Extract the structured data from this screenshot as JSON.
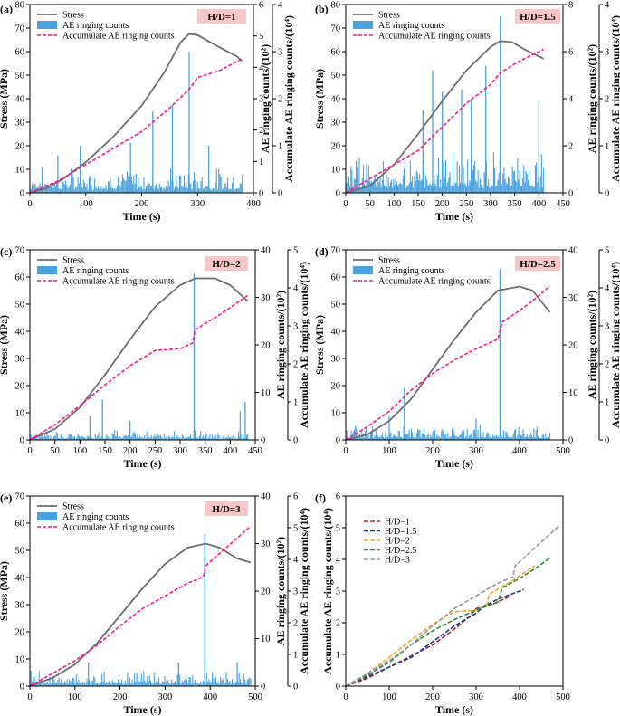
{
  "figure": {
    "colors": {
      "stress": "#6e6e6e",
      "ae_bars": "#4aa3df",
      "accumulate": "#ff1493",
      "label_box": "#f7c6c6"
    },
    "legend": {
      "stress": "Stress",
      "ae": "AE ringing counts",
      "acc": "Accumulate AE ringing counts"
    }
  },
  "chart_data": [
    {
      "type": "line",
      "panel": "(a)",
      "ratio_label": "H/D=1",
      "xlabel": "Time (s)",
      "ylabel_left": "Stress (MPa)",
      "ylabel_right1": "AE ringing counts/(10²)",
      "ylabel_right2": "Accumulate AE ringing counts/(10⁴)",
      "xlim": [
        0,
        400
      ],
      "xticks": [
        0,
        100,
        200,
        300,
        400
      ],
      "stress_lim": [
        0,
        80
      ],
      "stress_ticks": [
        0,
        10,
        20,
        30,
        40,
        50,
        60,
        70,
        80
      ],
      "ae_lim": [
        0,
        6
      ],
      "ae_ticks": [
        0,
        1,
        2,
        3,
        4,
        5,
        6
      ],
      "acc_lim": [
        0,
        4
      ],
      "acc_ticks": [
        0,
        1,
        2,
        3,
        4
      ],
      "duration": 380,
      "stress": [
        [
          0,
          0
        ],
        [
          30,
          2
        ],
        [
          60,
          6
        ],
        [
          100,
          13
        ],
        [
          150,
          24
        ],
        [
          200,
          37
        ],
        [
          240,
          51
        ],
        [
          270,
          64
        ],
        [
          285,
          67.5
        ],
        [
          300,
          67
        ],
        [
          330,
          63
        ],
        [
          370,
          58
        ],
        [
          380,
          56
        ]
      ],
      "accumulate": [
        [
          0,
          0
        ],
        [
          50,
          0.25
        ],
        [
          100,
          0.6
        ],
        [
          150,
          0.95
        ],
        [
          200,
          1.3
        ],
        [
          250,
          1.8
        ],
        [
          285,
          2.2
        ],
        [
          300,
          2.45
        ],
        [
          340,
          2.6
        ],
        [
          380,
          2.85
        ]
      ],
      "ae_base": 0.5,
      "ae_spikes": [
        [
          285,
          4.5
        ],
        [
          255,
          2.8
        ],
        [
          220,
          2.6
        ],
        [
          90,
          1.5
        ],
        [
          50,
          1.2
        ],
        [
          180,
          1.6
        ],
        [
          320,
          1.5
        ]
      ]
    },
    {
      "type": "line",
      "panel": "(b)",
      "ratio_label": "H/D=1.5",
      "xlabel": "Time (s)",
      "ylabel_left": "Stress (MPa)",
      "ylabel_right1": "AE ringing counts/(10²)",
      "ylabel_right2": "Accumulate AE ringing counts/(10⁴)",
      "xlim": [
        0,
        450
      ],
      "xticks": [
        0,
        50,
        100,
        150,
        200,
        250,
        300,
        350,
        400,
        450
      ],
      "stress_lim": [
        0,
        80
      ],
      "stress_ticks": [
        0,
        10,
        20,
        30,
        40,
        50,
        60,
        70,
        80
      ],
      "ae_lim": [
        0,
        8
      ],
      "ae_ticks": [
        0,
        2,
        4,
        6,
        8
      ],
      "acc_lim": [
        0,
        4
      ],
      "acc_ticks": [
        0,
        1,
        2,
        3,
        4
      ],
      "duration": 410,
      "stress": [
        [
          0,
          0
        ],
        [
          50,
          3
        ],
        [
          100,
          12
        ],
        [
          150,
          25
        ],
        [
          200,
          39
        ],
        [
          250,
          52
        ],
        [
          300,
          62
        ],
        [
          320,
          64.5
        ],
        [
          345,
          64
        ],
        [
          370,
          61
        ],
        [
          410,
          57
        ]
      ],
      "accumulate": [
        [
          0,
          0
        ],
        [
          50,
          0.3
        ],
        [
          100,
          0.6
        ],
        [
          150,
          0.9
        ],
        [
          200,
          1.4
        ],
        [
          250,
          1.9
        ],
        [
          300,
          2.3
        ],
        [
          320,
          2.55
        ],
        [
          360,
          2.8
        ],
        [
          410,
          3.05
        ]
      ],
      "ae_base": 1.0,
      "ae_spikes": [
        [
          320,
          7.5
        ],
        [
          180,
          5.2
        ],
        [
          290,
          5.4
        ],
        [
          240,
          4.4
        ],
        [
          200,
          4.3
        ],
        [
          400,
          3.9
        ],
        [
          260,
          4.0
        ],
        [
          160,
          3.5
        ]
      ]
    },
    {
      "type": "line",
      "panel": "(c)",
      "ratio_label": "H/D=2",
      "xlabel": "Time (s)",
      "ylabel_left": "Stress (MPa)",
      "ylabel_right1": "AE ringing counts/(10²)",
      "ylabel_right2": "Accumulate AE ringing counts/(10⁴)",
      "xlim": [
        0,
        450
      ],
      "xticks": [
        0,
        50,
        100,
        150,
        200,
        250,
        300,
        350,
        400,
        450
      ],
      "stress_lim": [
        0,
        70
      ],
      "stress_ticks": [
        0,
        10,
        20,
        30,
        40,
        50,
        60,
        70
      ],
      "ae_lim": [
        0,
        40
      ],
      "ae_ticks": [
        0,
        10,
        20,
        30,
        40
      ],
      "acc_lim": [
        0,
        5
      ],
      "acc_ticks": [
        0,
        1,
        2,
        3,
        4,
        5
      ],
      "duration": 435,
      "stress": [
        [
          0,
          0
        ],
        [
          50,
          4
        ],
        [
          100,
          12
        ],
        [
          150,
          24
        ],
        [
          200,
          37
        ],
        [
          250,
          49
        ],
        [
          300,
          57
        ],
        [
          330,
          59.5
        ],
        [
          370,
          59.5
        ],
        [
          400,
          57
        ],
        [
          430,
          52
        ],
        [
          435,
          51
        ]
      ],
      "accumulate": [
        [
          0,
          0
        ],
        [
          50,
          0.4
        ],
        [
          100,
          0.9
        ],
        [
          150,
          1.45
        ],
        [
          200,
          1.95
        ],
        [
          250,
          2.35
        ],
        [
          300,
          2.4
        ],
        [
          325,
          2.55
        ],
        [
          330,
          2.9
        ],
        [
          380,
          3.3
        ],
        [
          435,
          3.8
        ]
      ],
      "ae_base": 1.3,
      "ae_spikes": [
        [
          328,
          35
        ],
        [
          145,
          8.5
        ],
        [
          120,
          5
        ],
        [
          200,
          4
        ],
        [
          430,
          8
        ],
        [
          420,
          6
        ]
      ]
    },
    {
      "type": "line",
      "panel": "(d)",
      "ratio_label": "H/D=2.5",
      "xlabel": "Time (s)",
      "ylabel_left": "Stress (MPa)",
      "ylabel_right1": "AE ringing counts/(10²)",
      "ylabel_right2": "Accumulate AE ringing counts/(10⁴)",
      "xlim": [
        0,
        500
      ],
      "xticks": [
        0,
        100,
        200,
        300,
        400,
        500
      ],
      "stress_lim": [
        0,
        70
      ],
      "stress_ticks": [
        0,
        10,
        20,
        30,
        40,
        50,
        60,
        70
      ],
      "ae_lim": [
        0,
        40
      ],
      "ae_ticks": [
        0,
        10,
        20,
        30,
        40
      ],
      "acc_lim": [
        0,
        5
      ],
      "acc_ticks": [
        0,
        1,
        2,
        3,
        4,
        5
      ],
      "duration": 470,
      "stress": [
        [
          0,
          0
        ],
        [
          50,
          2
        ],
        [
          100,
          7
        ],
        [
          150,
          15
        ],
        [
          200,
          26
        ],
        [
          250,
          37
        ],
        [
          300,
          47
        ],
        [
          350,
          55
        ],
        [
          400,
          56.5
        ],
        [
          430,
          55
        ],
        [
          455,
          50
        ],
        [
          470,
          47
        ]
      ],
      "accumulate": [
        [
          0,
          0
        ],
        [
          50,
          0.35
        ],
        [
          100,
          0.75
        ],
        [
          150,
          1.3
        ],
        [
          200,
          1.75
        ],
        [
          250,
          2.1
        ],
        [
          300,
          2.4
        ],
        [
          350,
          2.65
        ],
        [
          360,
          3.1
        ],
        [
          400,
          3.4
        ],
        [
          440,
          3.75
        ],
        [
          470,
          4.05
        ]
      ],
      "ae_base": 1.8,
      "ae_spikes": [
        [
          355,
          36
        ],
        [
          135,
          11
        ],
        [
          100,
          5
        ],
        [
          300,
          4.5
        ]
      ]
    },
    {
      "type": "line",
      "panel": "(e)",
      "ratio_label": "H/D=3",
      "xlabel": "Time (s)",
      "ylabel_left": "Stress (MPa)",
      "ylabel_right1": "AE ringing counts/(10²)",
      "ylabel_right2": "Accumulate AE ringing counts/(10⁴)",
      "xlim": [
        0,
        500
      ],
      "xticks": [
        0,
        100,
        200,
        300,
        400,
        500
      ],
      "stress_lim": [
        0,
        70
      ],
      "stress_ticks": [
        0,
        10,
        20,
        30,
        40,
        50,
        60,
        70
      ],
      "ae_lim": [
        0,
        40
      ],
      "ae_ticks": [
        0,
        10,
        20,
        30,
        40
      ],
      "acc_lim": [
        0,
        6
      ],
      "acc_ticks": [
        0,
        1,
        2,
        3,
        4,
        5,
        6
      ],
      "duration": 490,
      "stress": [
        [
          0,
          0
        ],
        [
          50,
          3
        ],
        [
          100,
          8
        ],
        [
          150,
          16
        ],
        [
          200,
          26
        ],
        [
          250,
          36
        ],
        [
          300,
          45
        ],
        [
          350,
          51
        ],
        [
          390,
          52.5
        ],
        [
          420,
          51
        ],
        [
          460,
          47
        ],
        [
          490,
          45.5
        ]
      ],
      "accumulate": [
        [
          0,
          0
        ],
        [
          50,
          0.4
        ],
        [
          100,
          0.8
        ],
        [
          150,
          1.3
        ],
        [
          200,
          1.9
        ],
        [
          250,
          2.45
        ],
        [
          300,
          2.85
        ],
        [
          350,
          3.25
        ],
        [
          385,
          3.45
        ],
        [
          390,
          3.8
        ],
        [
          430,
          4.3
        ],
        [
          490,
          5.05
        ]
      ],
      "ae_base": 2.0,
      "ae_spikes": [
        [
          388,
          32
        ],
        [
          130,
          5
        ],
        [
          330,
          5
        ],
        [
          460,
          5
        ]
      ]
    },
    {
      "type": "line",
      "panel": "(f)",
      "xlabel": "Time (s)",
      "ylabel": "Accumulate AE ringing counts/(10⁴)",
      "xlim": [
        0,
        500
      ],
      "xticks": [
        0,
        100,
        200,
        300,
        400,
        500
      ],
      "ylim": [
        0,
        6
      ],
      "yticks": [
        0,
        1,
        2,
        3,
        4,
        5,
        6
      ],
      "series": [
        {
          "name": "H/D=1",
          "color": "#b22222",
          "points": [
            [
              0,
              0
            ],
            [
              50,
              0.25
            ],
            [
              100,
              0.6
            ],
            [
              150,
              0.95
            ],
            [
              200,
              1.3
            ],
            [
              250,
              1.8
            ],
            [
              285,
              2.2
            ],
            [
              300,
              2.45
            ],
            [
              340,
              2.6
            ],
            [
              380,
              2.85
            ]
          ]
        },
        {
          "name": "H/D=1.5",
          "color": "#1f3a93",
          "points": [
            [
              0,
              0
            ],
            [
              50,
              0.3
            ],
            [
              100,
              0.6
            ],
            [
              150,
              0.9
            ],
            [
              200,
              1.4
            ],
            [
              250,
              1.9
            ],
            [
              300,
              2.3
            ],
            [
              320,
              2.55
            ],
            [
              360,
              2.8
            ],
            [
              410,
              3.05
            ]
          ]
        },
        {
          "name": "H/D=2",
          "color": "#f5a623",
          "points": [
            [
              0,
              0
            ],
            [
              50,
              0.4
            ],
            [
              100,
              0.9
            ],
            [
              150,
              1.45
            ],
            [
              200,
              1.95
            ],
            [
              250,
              2.35
            ],
            [
              300,
              2.4
            ],
            [
              325,
              2.55
            ],
            [
              330,
              2.9
            ],
            [
              380,
              3.3
            ],
            [
              435,
              3.8
            ]
          ]
        },
        {
          "name": "H/D=2.5",
          "color": "#2e8b3e",
          "points": [
            [
              0,
              0
            ],
            [
              50,
              0.35
            ],
            [
              100,
              0.75
            ],
            [
              150,
              1.3
            ],
            [
              200,
              1.75
            ],
            [
              250,
              2.1
            ],
            [
              300,
              2.4
            ],
            [
              350,
              2.65
            ],
            [
              360,
              3.1
            ],
            [
              400,
              3.4
            ],
            [
              440,
              3.75
            ],
            [
              470,
              4.05
            ]
          ]
        },
        {
          "name": "H/D=3",
          "color": "#9a9a9a",
          "points": [
            [
              0,
              0
            ],
            [
              50,
              0.4
            ],
            [
              100,
              0.8
            ],
            [
              150,
              1.3
            ],
            [
              200,
              1.9
            ],
            [
              250,
              2.45
            ],
            [
              300,
              2.85
            ],
            [
              350,
              3.25
            ],
            [
              385,
              3.45
            ],
            [
              390,
              3.8
            ],
            [
              430,
              4.3
            ],
            [
              490,
              5.05
            ]
          ]
        }
      ]
    }
  ]
}
